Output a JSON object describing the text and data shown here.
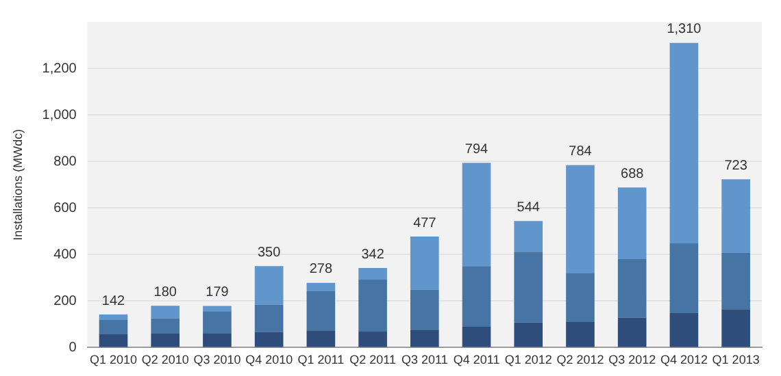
{
  "chart_data": {
    "type": "bar",
    "stacked": true,
    "ylabel": "Installations (MWdc)",
    "categories": [
      "Q1 2010",
      "Q2 2010",
      "Q3 2010",
      "Q4 2010",
      "Q1 2011",
      "Q2 2011",
      "Q3 2011",
      "Q4 2011",
      "Q1 2012",
      "Q2 2012",
      "Q3 2012",
      "Q4 2012",
      "Q1 2013"
    ],
    "series": [
      {
        "color": "#2e4d7b",
        "values": [
          57,
          62,
          62,
          67,
          74,
          69,
          77,
          89,
          108,
          110,
          129,
          148,
          165
        ]
      },
      {
        "color": "#4675a5",
        "values": [
          62,
          63,
          94,
          117,
          168,
          223,
          172,
          261,
          304,
          211,
          251,
          300,
          242
        ]
      },
      {
        "color": "#6096cc",
        "values": [
          23,
          55,
          23,
          166,
          36,
          50,
          228,
          444,
          132,
          463,
          308,
          862,
          316
        ]
      }
    ],
    "totals": [
      "142",
      "180",
      "179",
      "350",
      "278",
      "342",
      "477",
      "794",
      "544",
      "784",
      "688",
      "1,310",
      "723"
    ],
    "ylim": [
      0,
      1400
    ],
    "yticks": [
      0,
      {
        "value": 200,
        "label": "200"
      },
      {
        "value": 400,
        "label": "400"
      },
      {
        "value": 600,
        "label": "600"
      },
      {
        "value": 800,
        "label": "800"
      },
      {
        "value": 1000,
        "label": "1,000"
      },
      {
        "value": 1200,
        "label": "1,200"
      }
    ],
    "grid": "y",
    "legend": false
  }
}
